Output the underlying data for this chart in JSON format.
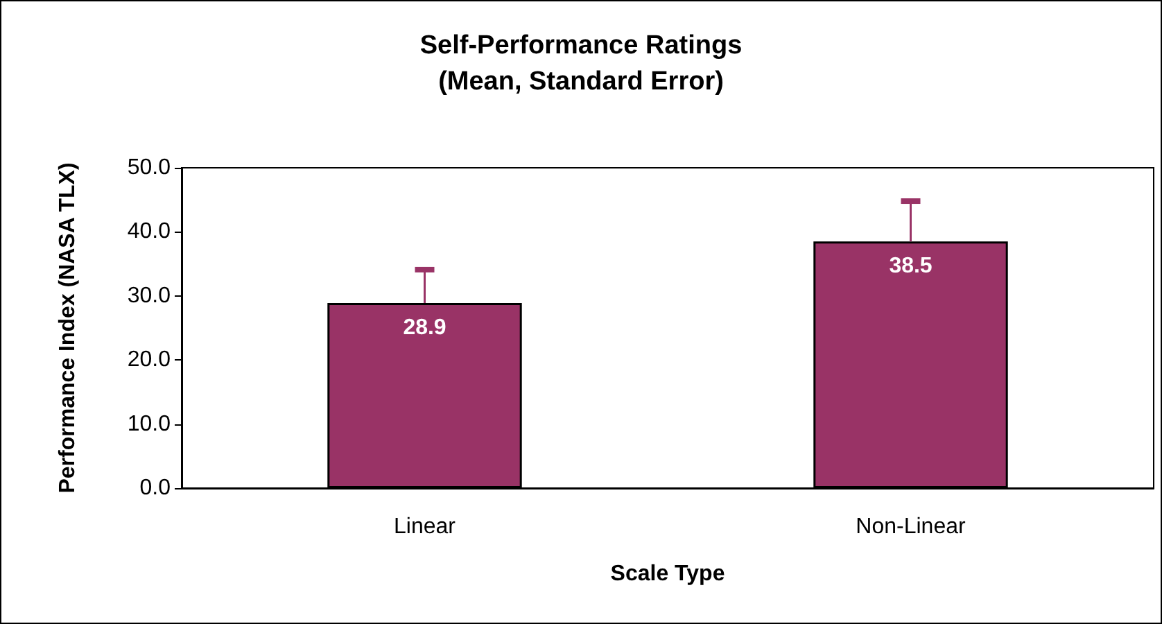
{
  "chart_data": {
    "type": "bar",
    "title": "Self-Performance Ratings\n(Mean, Standard Error)",
    "xlabel": "Scale Type",
    "ylabel": "Performance Index (NASA TLX)",
    "categories": [
      "Linear",
      "Non-Linear"
    ],
    "values": [
      28.9,
      38.5
    ],
    "color": "#993366",
    "errors": [
      [
        28.9,
        34.1
      ],
      [
        38.5,
        44.8
      ]
    ],
    "ylim": [
      0,
      50
    ],
    "yticks": [
      {
        "value": 0,
        "label": "0.0"
      },
      {
        "value": 10,
        "label": "10.0"
      },
      {
        "value": 20,
        "label": "20.0"
      },
      {
        "value": 30,
        "label": "30.0"
      },
      {
        "value": 40,
        "label": "40.0"
      },
      {
        "value": 50,
        "label": "50.0"
      }
    ],
    "data_labels": true,
    "grid": false
  }
}
